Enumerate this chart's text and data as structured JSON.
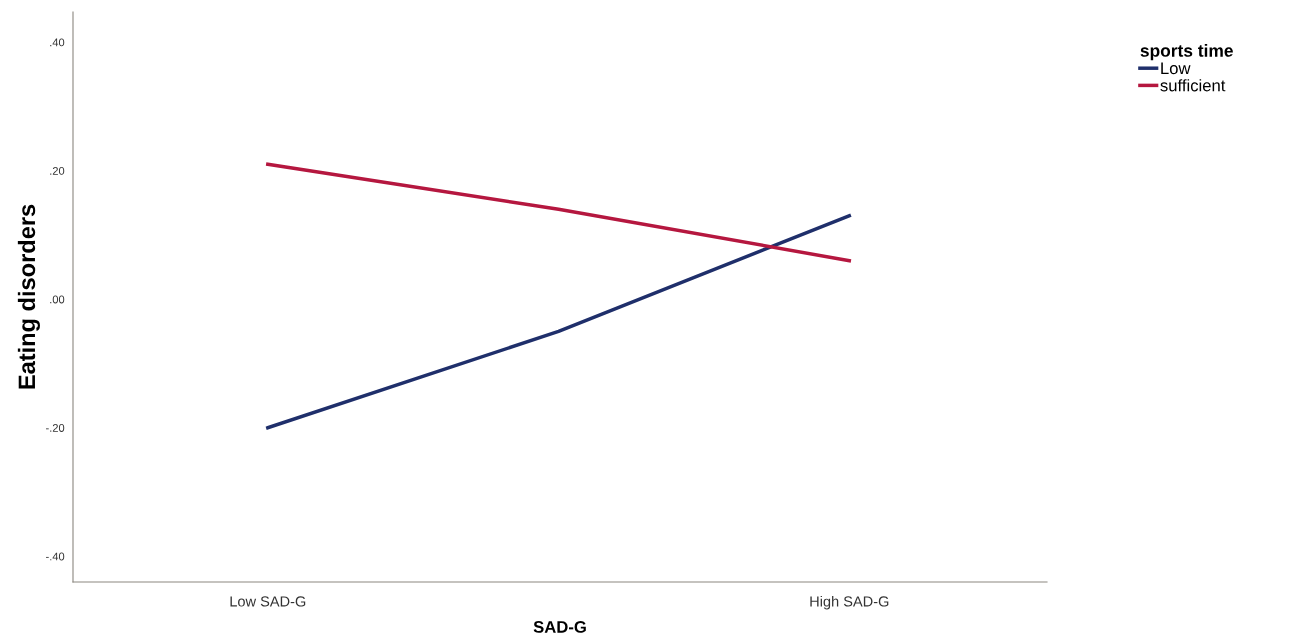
{
  "chart_data": {
    "type": "line",
    "xlabel": "SAD-G",
    "ylabel": "Eating disorders",
    "legend_title": "sports time",
    "categories": [
      "Low SAD-G",
      null,
      "High SAD-G"
    ],
    "series": [
      {
        "name": "Low",
        "color": "#1f2f6b",
        "values": [
          -0.2,
          -0.05,
          0.13
        ]
      },
      {
        "name": "sufficient",
        "color": "#b5173f",
        "values": [
          0.21,
          0.14,
          0.06
        ]
      }
    ],
    "ylim": [
      -0.44,
      0.447
    ],
    "yticks": [
      {
        "value": -0.4,
        "label": "-.40"
      },
      {
        "value": -0.2,
        "label": "-.20"
      },
      {
        "value": 0,
        "label": ".00"
      },
      {
        "value": 0.2,
        "label": ".20"
      },
      {
        "value": 0.4,
        "label": ".40"
      }
    ],
    "legend": "top right",
    "grid": false
  }
}
